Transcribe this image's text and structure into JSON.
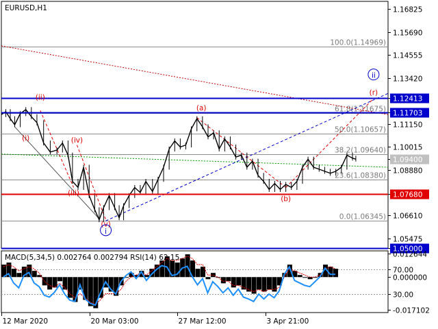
{
  "chart_data": {
    "type": "line",
    "symbol": "EURUSD,H1",
    "price_axis": {
      "range": [
        1.05,
        1.172
      ],
      "tick_labels": [
        "1.16825",
        "1.15690",
        "1.14555",
        "1.13420",
        "1.12413",
        "1.11703",
        "1.11150",
        "1.10015",
        "1.09400",
        "1.08880",
        "1.07680",
        "1.06610",
        "1.05475",
        "1.05000"
      ]
    },
    "time_axis": {
      "range_days": "12 Mar 2020 00:00 – 10 Apr 2020 00:00",
      "tick_labels": [
        "12 Mar 2020",
        "20 Mar 03:00",
        "27 Mar 12:00",
        "3 Apr 21:00"
      ]
    },
    "price_series_close": [
      {
        "t": "2020-03-12 00:00",
        "y": 1.116
      },
      {
        "t": "2020-03-12 08:00",
        "y": 1.1175
      },
      {
        "t": "2020-03-12 16:00",
        "y": 1.114
      },
      {
        "t": "2020-03-13 00:00",
        "y": 1.111
      },
      {
        "t": "2020-03-13 10:00",
        "y": 1.1165
      },
      {
        "t": "2020-03-13 20:00",
        "y": 1.1185
      },
      {
        "t": "2020-03-14 06:00",
        "y": 1.115
      },
      {
        "t": "2020-03-14 16:00",
        "y": 1.112
      },
      {
        "t": "2020-03-15 04:00",
        "y": 1.102
      },
      {
        "t": "2020-03-15 16:00",
        "y": 1.0975
      },
      {
        "t": "2020-03-16 04:00",
        "y": 1.0985
      },
      {
        "t": "2020-03-16 14:00",
        "y": 1.102
      },
      {
        "t": "2020-03-17 00:00",
        "y": 1.096
      },
      {
        "t": "2020-03-17 08:00",
        "y": 1.083
      },
      {
        "t": "2020-03-17 18:00",
        "y": 1.08
      },
      {
        "t": "2020-03-18 04:00",
        "y": 1.09
      },
      {
        "t": "2020-03-18 14:00",
        "y": 1.076
      },
      {
        "t": "2020-03-19 00:00",
        "y": 1.069
      },
      {
        "t": "2020-03-19 08:00",
        "y": 1.064
      },
      {
        "t": "2020-03-19 16:00",
        "y": 1.07
      },
      {
        "t": "2020-03-20 02:00",
        "y": 1.076
      },
      {
        "t": "2020-03-20 12:00",
        "y": 1.07
      },
      {
        "t": "2020-03-20 20:00",
        "y": 1.065
      },
      {
        "t": "2020-03-21 04:00",
        "y": 1.071
      },
      {
        "t": "2020-03-21 14:00",
        "y": 1.076
      },
      {
        "t": "2020-03-22 00:00",
        "y": 1.08
      },
      {
        "t": "2020-03-22 10:00",
        "y": 1.0775
      },
      {
        "t": "2020-03-22 20:00",
        "y": 1.083
      },
      {
        "t": "2020-03-23 08:00",
        "y": 1.078
      },
      {
        "t": "2020-03-23 18:00",
        "y": 1.084
      },
      {
        "t": "2020-03-24 04:00",
        "y": 1.09
      },
      {
        "t": "2020-03-24 14:00",
        "y": 1.099
      },
      {
        "t": "2020-03-25 00:00",
        "y": 1.103
      },
      {
        "t": "2020-03-25 10:00",
        "y": 1.1
      },
      {
        "t": "2020-03-25 20:00",
        "y": 1.101
      },
      {
        "t": "2020-03-26 06:00",
        "y": 1.109
      },
      {
        "t": "2020-03-26 16:00",
        "y": 1.114
      },
      {
        "t": "2020-03-27 02:00",
        "y": 1.11
      },
      {
        "t": "2020-03-27 12:00",
        "y": 1.105
      },
      {
        "t": "2020-03-27 22:00",
        "y": 1.107
      },
      {
        "t": "2020-03-28 08:00",
        "y": 1.099
      },
      {
        "t": "2020-03-28 18:00",
        "y": 1.104
      },
      {
        "t": "2020-03-29 04:00",
        "y": 1.1
      },
      {
        "t": "2020-03-29 14:00",
        "y": 1.095
      },
      {
        "t": "2020-03-30 00:00",
        "y": 1.096
      },
      {
        "t": "2020-03-30 10:00",
        "y": 1.09
      },
      {
        "t": "2020-03-30 20:00",
        "y": 1.093
      },
      {
        "t": "2020-03-31 06:00",
        "y": 1.086
      },
      {
        "t": "2020-03-31 16:00",
        "y": 1.083
      },
      {
        "t": "2020-04-01 02:00",
        "y": 1.079
      },
      {
        "t": "2020-04-01 12:00",
        "y": 1.082
      },
      {
        "t": "2020-04-01 22:00",
        "y": 1.079
      },
      {
        "t": "2020-04-02 08:00",
        "y": 1.0815
      },
      {
        "t": "2020-04-02 18:00",
        "y": 1.08
      },
      {
        "t": "2020-04-03 04:00",
        "y": 1.083
      },
      {
        "t": "2020-04-03 14:00",
        "y": 1.09
      },
      {
        "t": "2020-04-04 00:00",
        "y": 1.094
      },
      {
        "t": "2020-04-04 10:00",
        "y": 1.09
      },
      {
        "t": "2020-04-04 20:00",
        "y": 1.089
      },
      {
        "t": "2020-04-05 06:00",
        "y": 1.088
      },
      {
        "t": "2020-04-05 16:00",
        "y": 1.087
      },
      {
        "t": "2020-04-06 02:00",
        "y": 1.088
      },
      {
        "t": "2020-04-06 12:00",
        "y": 1.09
      },
      {
        "t": "2020-04-06 22:00",
        "y": 1.096
      },
      {
        "t": "2020-04-07 08:00",
        "y": 1.0945
      },
      {
        "t": "2020-04-07 14:00",
        "y": 1.094
      }
    ],
    "fib_levels": [
      {
        "label": "100.0(1.14969)",
        "value": 1.14969
      },
      {
        "label": "61.8(1.11675)",
        "value": 1.11675
      },
      {
        "label": "50.0(1.10657)",
        "value": 1.10657
      },
      {
        "label": "38.2(1.09640)",
        "value": 1.0964
      },
      {
        "label": "23.6(1.08380)",
        "value": 1.0838
      },
      {
        "label": "0.0(1.06345)",
        "value": 1.06345
      }
    ],
    "horizontal_lines": [
      {
        "label": "1.12413",
        "value": 1.12413,
        "color": "#0000cc"
      },
      {
        "label": "1.11703",
        "value": 1.11703,
        "color": "#0000cc"
      },
      {
        "label": "1.07680",
        "value": 1.0768,
        "color": "#e00000"
      },
      {
        "label": "1.05000",
        "value": 1.05,
        "color": "#0000cc"
      }
    ],
    "current_price_tag": {
      "label": "1.09400",
      "value": 1.094
    },
    "wave_labels": [
      {
        "text": "(i)",
        "t": "2020-03-13 20:00",
        "y": 1.1035,
        "color": "#e00000"
      },
      {
        "text": "(ii)",
        "t": "2020-03-14 22:00",
        "y": 1.1237,
        "color": "#e00000"
      },
      {
        "text": "(iii)",
        "t": "2020-03-17 10:00",
        "y": 1.0765,
        "color": "#e00000"
      },
      {
        "text": "(iv)",
        "t": "2020-03-17 16:00",
        "y": 1.1025,
        "color": "#e00000"
      },
      {
        "text": "(v)",
        "t": "2020-03-19 20:00",
        "y": 1.061,
        "color": "#e00000"
      },
      {
        "text": "i",
        "t": "2020-03-19 20:00",
        "y": 1.0575,
        "color": "#0000cc",
        "circled": true
      },
      {
        "text": "(a)",
        "t": "2020-03-27 00:00",
        "y": 1.1185,
        "color": "#e00000"
      },
      {
        "text": "(b)",
        "t": "2020-04-02 08:00",
        "y": 1.0735,
        "color": "#e00000"
      },
      {
        "text": "(r)",
        "t": "2020-04-08 22:00",
        "y": 1.126,
        "color": "#e00000"
      },
      {
        "text": "ii",
        "t": "2020-04-08 22:00",
        "y": 1.1345,
        "color": "#0000cc",
        "circled": true
      }
    ],
    "trend_lines": [
      {
        "from": {
          "t": "2020-03-12 00:00",
          "y": 1.15
        },
        "to": {
          "t": "2020-04-10 00:00",
          "y": 1.116
        },
        "color": "#c00000",
        "style": "dotted"
      },
      {
        "from": {
          "t": "2020-03-19 20:00",
          "y": 1.0635
        },
        "to": {
          "t": "2020-04-10 00:00",
          "y": 1.1265
        },
        "color": "#0000cc",
        "style": "dashed"
      },
      {
        "from": {
          "t": "2020-03-12 00:00",
          "y": 1.0965
        },
        "to": {
          "t": "2020-04-10 00:00",
          "y": 1.09
        },
        "color": "#009900",
        "style": "dotted"
      },
      {
        "from": {
          "t": "2020-03-13 00:00",
          "y": 1.11
        },
        "to": {
          "t": "2020-03-19 08:00",
          "y": 1.0645
        },
        "color": "#555555",
        "style": "solid"
      },
      {
        "from": {
          "t": "2020-03-14 22:00",
          "y": 1.118
        },
        "to": {
          "t": "2020-03-17 10:00",
          "y": 1.08
        },
        "color": "#e00000",
        "style": "dashed"
      },
      {
        "from": {
          "t": "2020-03-17 16:00",
          "y": 1.101
        },
        "to": {
          "t": "2020-03-19 20:00",
          "y": 1.064
        },
        "color": "#e00000",
        "style": "dashed"
      },
      {
        "from": {
          "t": "2020-03-26 16:00",
          "y": 1.1145
        },
        "to": {
          "t": "2020-04-02 08:00",
          "y": 1.08
        },
        "color": "#e00000",
        "style": "dashed"
      },
      {
        "from": {
          "t": "2020-04-02 08:00",
          "y": 1.08
        },
        "to": {
          "t": "2020-04-08 22:00",
          "y": 1.124
        },
        "color": "#e00000",
        "style": "dashed"
      }
    ],
    "indicator": {
      "label": "MACD(5,34,5) 0.002764 0.002794 RSI(14) 62.15",
      "axis_labels": [
        "0.012644",
        "70.00",
        "0.000000",
        "30.00",
        "-0.017102"
      ],
      "macd_range": [
        -0.017102,
        0.012644
      ],
      "rsi_range": [
        0,
        100
      ],
      "macd_hist": [
        0.006,
        0.007,
        0.004,
        0.002,
        0.005,
        0.006,
        0.003,
        0.001,
        -0.004,
        -0.006,
        -0.005,
        -0.002,
        -0.006,
        -0.01,
        -0.012,
        -0.006,
        -0.011,
        -0.014,
        -0.015,
        -0.01,
        -0.005,
        -0.007,
        -0.009,
        -0.004,
        0.0,
        0.002,
        0.001,
        0.003,
        0.001,
        0.004,
        0.006,
        0.008,
        0.01,
        0.008,
        0.007,
        0.009,
        0.011,
        0.008,
        0.004,
        0.005,
        -0.001,
        0.002,
        0.0,
        -0.003,
        -0.002,
        -0.005,
        -0.004,
        -0.006,
        -0.007,
        -0.008,
        -0.006,
        -0.007,
        -0.006,
        -0.007,
        -0.004,
        0.002,
        0.006,
        0.003,
        0.001,
        0.0,
        -0.001,
        0.0,
        0.002,
        0.006,
        0.005,
        0.004
      ],
      "macd_signal": [
        0.005,
        0.006,
        0.005,
        0.003,
        0.004,
        0.005,
        0.004,
        0.002,
        -0.002,
        -0.004,
        -0.005,
        -0.003,
        -0.005,
        -0.008,
        -0.01,
        -0.008,
        -0.01,
        -0.012,
        -0.013,
        -0.011,
        -0.008,
        -0.008,
        -0.008,
        -0.006,
        -0.002,
        0.0,
        0.001,
        0.002,
        0.001,
        0.003,
        0.005,
        0.007,
        0.009,
        0.008,
        0.008,
        0.009,
        0.01,
        0.009,
        0.006,
        0.006,
        0.001,
        0.001,
        0.0,
        -0.002,
        -0.002,
        -0.004,
        -0.004,
        -0.005,
        -0.006,
        -0.007,
        -0.006,
        -0.007,
        -0.006,
        -0.006,
        -0.005,
        0.0,
        0.004,
        0.003,
        0.002,
        0.001,
        0.0,
        0.0,
        0.001,
        0.004,
        0.005,
        0.004
      ],
      "rsi": [
        58,
        63,
        48,
        40,
        60,
        65,
        48,
        42,
        28,
        25,
        33,
        45,
        30,
        20,
        18,
        45,
        22,
        15,
        12,
        32,
        50,
        38,
        30,
        50,
        60,
        66,
        55,
        66,
        52,
        62,
        70,
        76,
        74,
        60,
        62,
        72,
        75,
        58,
        45,
        55,
        32,
        50,
        42,
        32,
        40,
        28,
        38,
        25,
        22,
        18,
        30,
        22,
        30,
        24,
        35,
        62,
        74,
        52,
        48,
        44,
        42,
        50,
        58,
        72,
        62,
        62
      ]
    }
  }
}
